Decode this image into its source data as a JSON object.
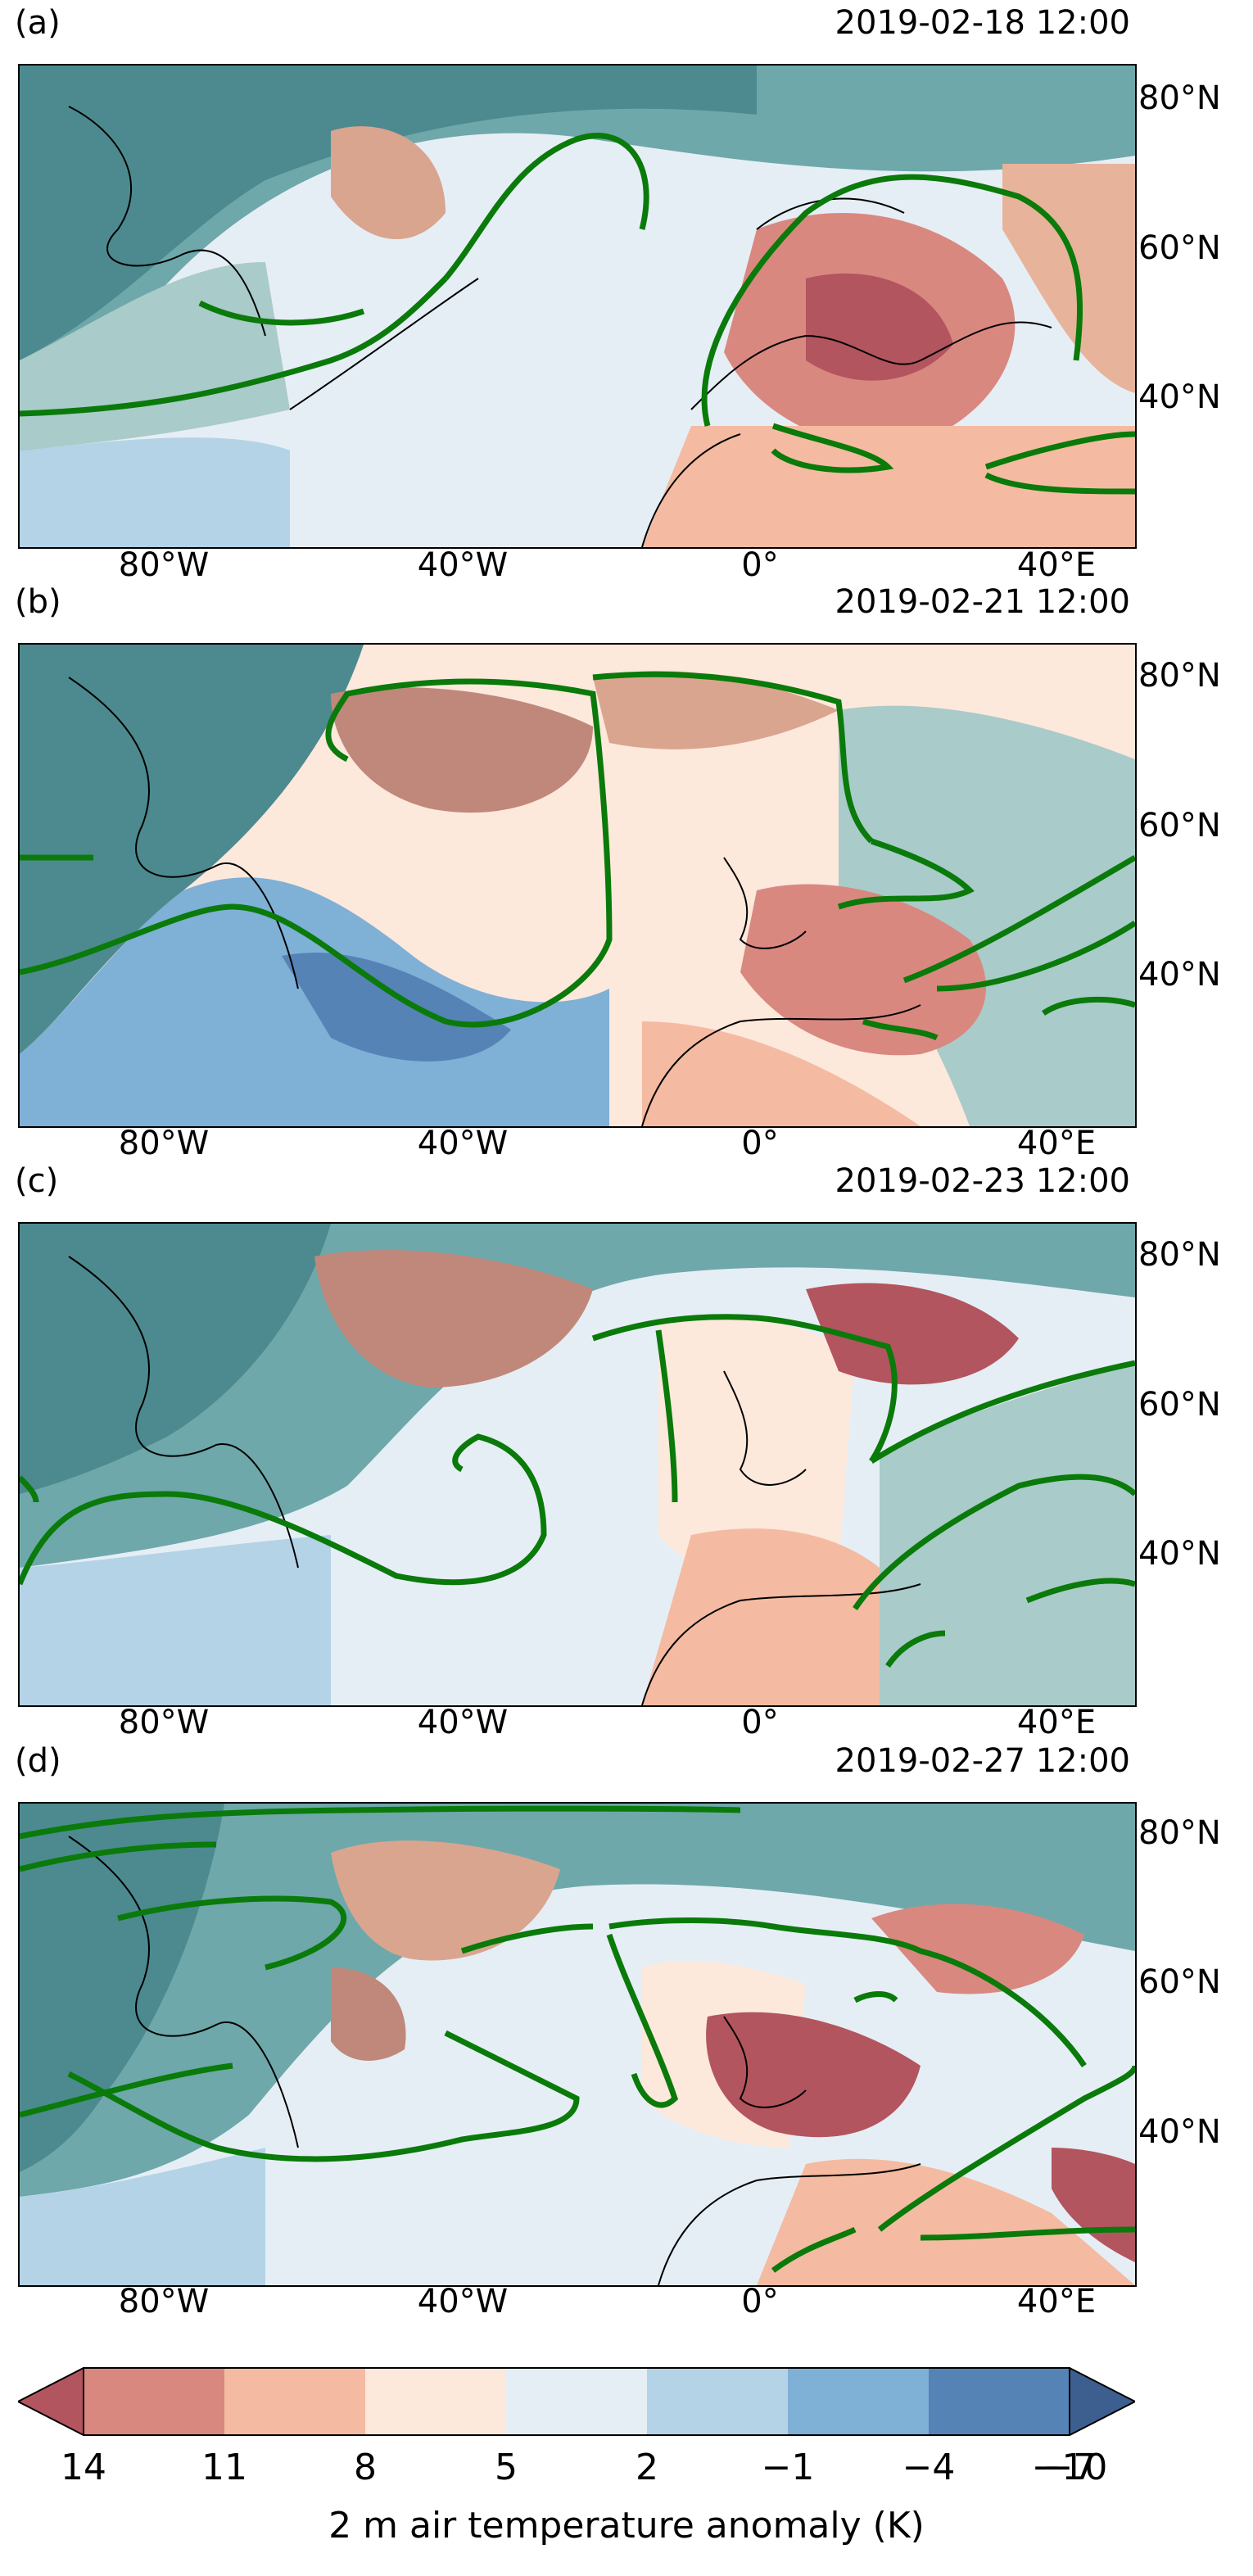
{
  "panels": [
    {
      "label": "(a)",
      "time": "2019-02-18 12:00"
    },
    {
      "label": "(b)",
      "time": "2019-02-21 12:00"
    },
    {
      "label": "(c)",
      "time": "2019-02-23 12:00"
    },
    {
      "label": "(d)",
      "time": "2019-02-27 12:00"
    }
  ],
  "lat_labels": [
    "80°N",
    "60°N",
    "40°N"
  ],
  "lon_labels": [
    "80°W",
    "40°W",
    "0°",
    "40°E"
  ],
  "colorbar": {
    "ticks": [
      "14",
      "11",
      "8",
      "5",
      "2",
      "−1",
      "−4",
      "−7",
      "−10"
    ],
    "label": "2 m air temperature anomaly (K)",
    "colors": [
      "#b2555f",
      "#d98880",
      "#f4bba2",
      "#fde8dc",
      "#e6eef5",
      "#b4d3e7",
      "#7fb0d6",
      "#5683b5",
      "#3c5f8f"
    ]
  },
  "colors": {
    "contour": "#0a7a0a",
    "coast": "#000000",
    "land_cool": "#6aa6a6",
    "land_warm": "#d19c8a"
  }
}
